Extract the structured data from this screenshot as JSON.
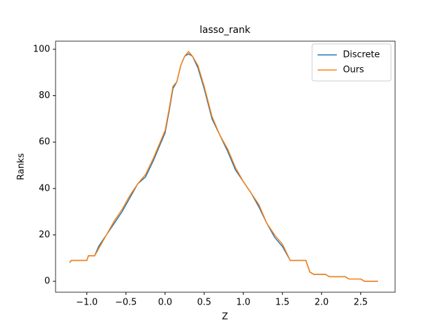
{
  "chart_data": {
    "type": "line",
    "title": "lasso_rank",
    "x_label": "Z",
    "y_label": "Ranks",
    "x": [
      -1.22,
      -1.2,
      -1.0,
      -0.98,
      -0.9,
      -0.85,
      -0.75,
      -0.65,
      -0.55,
      -0.45,
      -0.35,
      -0.25,
      -0.15,
      -0.05,
      0.0,
      0.05,
      0.1,
      0.15,
      0.2,
      0.25,
      0.3,
      0.35,
      0.42,
      0.5,
      0.6,
      0.7,
      0.8,
      0.9,
      1.0,
      1.1,
      1.2,
      1.3,
      1.4,
      1.5,
      1.6,
      1.8,
      1.85,
      1.9,
      2.05,
      2.1,
      2.3,
      2.35,
      2.5,
      2.55,
      2.72
    ],
    "series": [
      {
        "name": "Discrete",
        "color": "#1f77b4",
        "values": [
          8,
          9,
          9,
          11,
          11,
          15,
          20,
          25,
          30,
          36,
          42,
          45,
          52,
          60,
          64,
          73,
          83,
          86,
          93,
          97,
          98,
          97,
          92,
          83,
          70,
          63,
          56,
          48,
          43,
          38,
          32,
          25,
          19,
          15,
          9,
          9,
          4,
          3,
          3,
          2,
          2,
          1,
          1,
          0,
          0
        ]
      },
      {
        "name": "Ours",
        "color": "#ff7f0e",
        "values": [
          8,
          9,
          9,
          11,
          11,
          14,
          20,
          26,
          31,
          37,
          42,
          46,
          53,
          61,
          65,
          74,
          84,
          86,
          93,
          97,
          99,
          97,
          93,
          84,
          71,
          63,
          57,
          49,
          43,
          38,
          33,
          25,
          20,
          16,
          9,
          9,
          4,
          3,
          3,
          2,
          2,
          1,
          1,
          0,
          0
        ]
      }
    ],
    "xlim": [
      -1.4,
      2.94
    ],
    "ylim": [
      -4.7,
      103.5
    ],
    "xticks": [
      {
        "value": -1,
        "label": "−1.0"
      },
      {
        "value": -0.5,
        "label": "−0.5"
      },
      {
        "value": 0,
        "label": "0.0"
      },
      {
        "value": 0.5,
        "label": "0.5"
      },
      {
        "value": 1,
        "label": "1.0"
      },
      {
        "value": 1.5,
        "label": "1.5"
      },
      {
        "value": 2,
        "label": "2.0"
      },
      {
        "value": 2.5,
        "label": "2.5"
      }
    ],
    "yticks": [
      0,
      20,
      40,
      60,
      80,
      100
    ],
    "legend": "upper right"
  }
}
